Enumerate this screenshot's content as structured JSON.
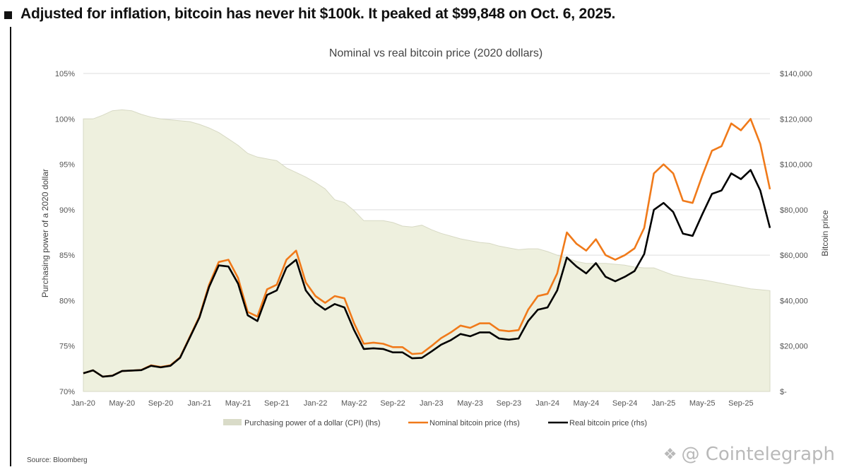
{
  "headline": "Adjusted for inflation, bitcoin has never hit $100k. It peaked at $99,848 on Oct. 6, 2025.",
  "source": "Source: Bloomberg",
  "watermark": {
    "icon": "binance-logo-icon",
    "text": "@ Cointelegraph"
  },
  "colors": {
    "nominal": "#f07a1a",
    "real": "#000000",
    "cpi_fill": "#eef0de",
    "grid": "#dddddd"
  },
  "chart_data": {
    "type": "line",
    "title": "Nominal vs real bitcoin price (2020 dollars)",
    "ylabel_left": "Purchasing power of a 2020 dollar",
    "ylabel_right": "Bitcoin price",
    "ylim_left": [
      70,
      105
    ],
    "ylim_right": [
      0,
      140000
    ],
    "yticks_left": [
      "105%",
      "100%",
      "95%",
      "90%",
      "85%",
      "80%",
      "75%",
      "70%"
    ],
    "yticks_right": [
      "$140,000",
      "$120,000",
      "$100,000",
      "$80,000",
      "$60,000",
      "$40,000",
      "$20,000",
      "$-"
    ],
    "x_ticks": [
      "Jan-20",
      "May-20",
      "Sep-20",
      "Jan-21",
      "May-21",
      "Sep-21",
      "Jan-22",
      "May-22",
      "Sep-22",
      "Jan-23",
      "May-23",
      "Sep-23",
      "Jan-24",
      "May-24",
      "Sep-24",
      "Jan-25",
      "May-25",
      "Sep-25"
    ],
    "grid": true,
    "legend_position": "bottom",
    "x_months": [
      "2020-01",
      "2020-02",
      "2020-03",
      "2020-04",
      "2020-05",
      "2020-06",
      "2020-07",
      "2020-08",
      "2020-09",
      "2020-10",
      "2020-11",
      "2020-12",
      "2021-01",
      "2021-02",
      "2021-03",
      "2021-04",
      "2021-05",
      "2021-06",
      "2021-07",
      "2021-08",
      "2021-09",
      "2021-10",
      "2021-11",
      "2021-12",
      "2022-01",
      "2022-02",
      "2022-03",
      "2022-04",
      "2022-05",
      "2022-06",
      "2022-07",
      "2022-08",
      "2022-09",
      "2022-10",
      "2022-11",
      "2022-12",
      "2023-01",
      "2023-02",
      "2023-03",
      "2023-04",
      "2023-05",
      "2023-06",
      "2023-07",
      "2023-08",
      "2023-09",
      "2023-10",
      "2023-11",
      "2023-12",
      "2024-01",
      "2024-02",
      "2024-03",
      "2024-04",
      "2024-05",
      "2024-06",
      "2024-07",
      "2024-08",
      "2024-09",
      "2024-10",
      "2024-11",
      "2024-12",
      "2025-01",
      "2025-02",
      "2025-03",
      "2025-04",
      "2025-05",
      "2025-06",
      "2025-07",
      "2025-08",
      "2025-09",
      "2025-10",
      "2025-11",
      "2025-12"
    ],
    "series": [
      {
        "name": "Purchasing power of a dollar (CPI) (lhs)",
        "axis": "left",
        "kind": "area",
        "values": [
          100.0,
          100.0,
          100.4,
          100.9,
          101.0,
          100.9,
          100.5,
          100.2,
          100.0,
          99.9,
          99.8,
          99.7,
          99.4,
          99.0,
          98.5,
          97.8,
          97.1,
          96.2,
          95.8,
          95.6,
          95.4,
          94.6,
          94.1,
          93.6,
          93.0,
          92.3,
          91.1,
          90.8,
          89.9,
          88.8,
          88.8,
          88.8,
          88.6,
          88.2,
          88.1,
          88.3,
          87.8,
          87.4,
          87.1,
          86.8,
          86.6,
          86.4,
          86.3,
          86.0,
          85.8,
          85.6,
          85.7,
          85.7,
          85.4,
          85.0,
          84.7,
          84.3,
          84.1,
          84.1,
          84.1,
          84.0,
          83.9,
          83.7,
          83.6,
          83.6,
          83.2,
          82.8,
          82.6,
          82.4,
          82.3,
          82.1,
          81.9,
          81.7,
          81.5,
          81.3,
          81.2,
          81.1
        ]
      },
      {
        "name": "Nominal bitcoin price (rhs)",
        "axis": "right",
        "kind": "line",
        "values": [
          8000,
          9300,
          6500,
          7000,
          9000,
          9200,
          9500,
          11500,
          10800,
          11500,
          15000,
          24000,
          33000,
          47000,
          57000,
          58000,
          50000,
          35000,
          33000,
          45000,
          47000,
          58000,
          62000,
          48000,
          42000,
          39000,
          42000,
          41000,
          30000,
          21000,
          21500,
          21000,
          19500,
          19500,
          16500,
          16800,
          20000,
          23500,
          26000,
          29000,
          28000,
          30000,
          30000,
          27000,
          26500,
          27000,
          36000,
          42000,
          43000,
          52000,
          70000,
          65000,
          62000,
          67000,
          60000,
          58000,
          60000,
          63000,
          72000,
          96000,
          100000,
          96000,
          84000,
          83000,
          95000,
          106000,
          108000,
          118000,
          115000,
          120000,
          109000,
          89000
        ]
      },
      {
        "name": "Real bitcoin price (rhs)",
        "axis": "right",
        "kind": "line",
        "values": [
          8000,
          9300,
          6500,
          6900,
          9000,
          9200,
          9400,
          11300,
          10600,
          11300,
          14800,
          23600,
          32500,
          46000,
          55500,
          55000,
          47500,
          33500,
          31000,
          42500,
          44500,
          54500,
          58000,
          44500,
          39000,
          36000,
          38500,
          37000,
          27000,
          18700,
          19000,
          18700,
          17200,
          17200,
          14600,
          14800,
          17600,
          20600,
          22600,
          25300,
          24300,
          26000,
          26000,
          23300,
          22800,
          23300,
          31000,
          36000,
          37000,
          44500,
          59000,
          55000,
          52000,
          56500,
          50500,
          48500,
          50500,
          53000,
          60500,
          80000,
          83000,
          79000,
          69500,
          68500,
          78000,
          87000,
          88500,
          96000,
          93500,
          97500,
          88500,
          72000
        ]
      }
    ]
  }
}
